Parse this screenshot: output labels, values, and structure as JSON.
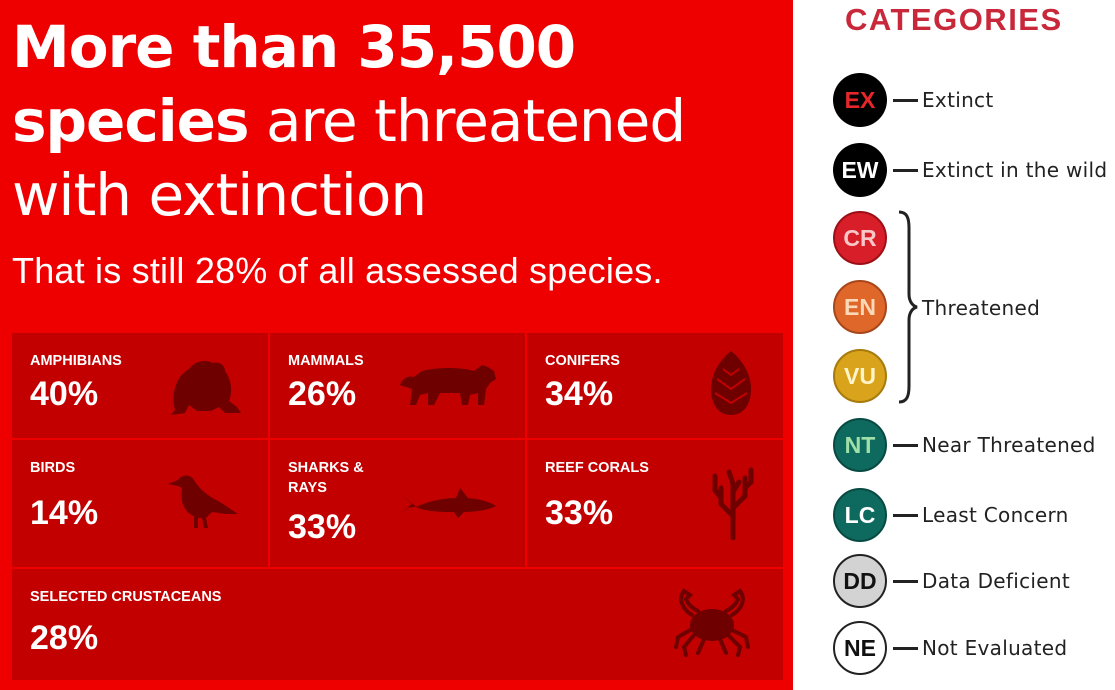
{
  "headline": {
    "bold_1": "More than 35,500",
    "bold_2": "species",
    "light_1": "are threatened",
    "light_2": "with extinction"
  },
  "subheadline": "That is still 28% of all assessed species.",
  "groups": [
    {
      "label": "AMPHIBIANS",
      "percent": "40%",
      "icon": "frog-icon"
    },
    {
      "label": "MAMMALS",
      "percent": "26%",
      "icon": "tiger-icon"
    },
    {
      "label": "CONIFERS",
      "percent": "34%",
      "icon": "pinecone-icon"
    },
    {
      "label": "BIRDS",
      "percent": "14%",
      "icon": "bird-icon"
    },
    {
      "label": "SHARKS &",
      "label2": "RAYS",
      "percent": "33%",
      "icon": "shark-icon"
    },
    {
      "label": "REEF CORALS",
      "percent": "33%",
      "icon": "coral-icon"
    },
    {
      "label": "SELECTED CRUSTACEANS",
      "percent": "28%",
      "icon": "crab-icon"
    }
  ],
  "legend": {
    "title": "CATEGORIES",
    "items": [
      {
        "code": "EX",
        "label": "Extinct",
        "fill": "#000000",
        "text_color": "#e8262a"
      },
      {
        "code": "EW",
        "label": "Extinct in the wild",
        "fill": "#000000",
        "text_color": "#ffffff"
      },
      {
        "code": "CR",
        "label": "",
        "fill": "#d81e28",
        "text_color": "#f8c8c8"
      },
      {
        "code": "EN",
        "label": "",
        "fill": "#e0672a",
        "text_color": "#fbd8b8"
      },
      {
        "code": "VU",
        "label": "",
        "fill": "#d9a31b",
        "text_color": "#fff3c8"
      },
      {
        "code": "NT",
        "label": "Near Threatened",
        "fill": "#0e6a5f",
        "text_color": "#9fe0a8"
      },
      {
        "code": "LC",
        "label": "Least Concern",
        "fill": "#0e6a5f",
        "text_color": "#ffffff"
      },
      {
        "code": "DD",
        "label": "Data Deficient",
        "fill": "#d3d3d3",
        "text_color": "#111111"
      },
      {
        "code": "NE",
        "label": "Not Evaluated",
        "fill": "#ffffff",
        "text_color": "#111111"
      }
    ],
    "group_label": "Threatened"
  },
  "colors": {
    "panel": "#ee0000",
    "cell": "#c20000",
    "icon": "#6e0000",
    "title": "#c8283a"
  }
}
